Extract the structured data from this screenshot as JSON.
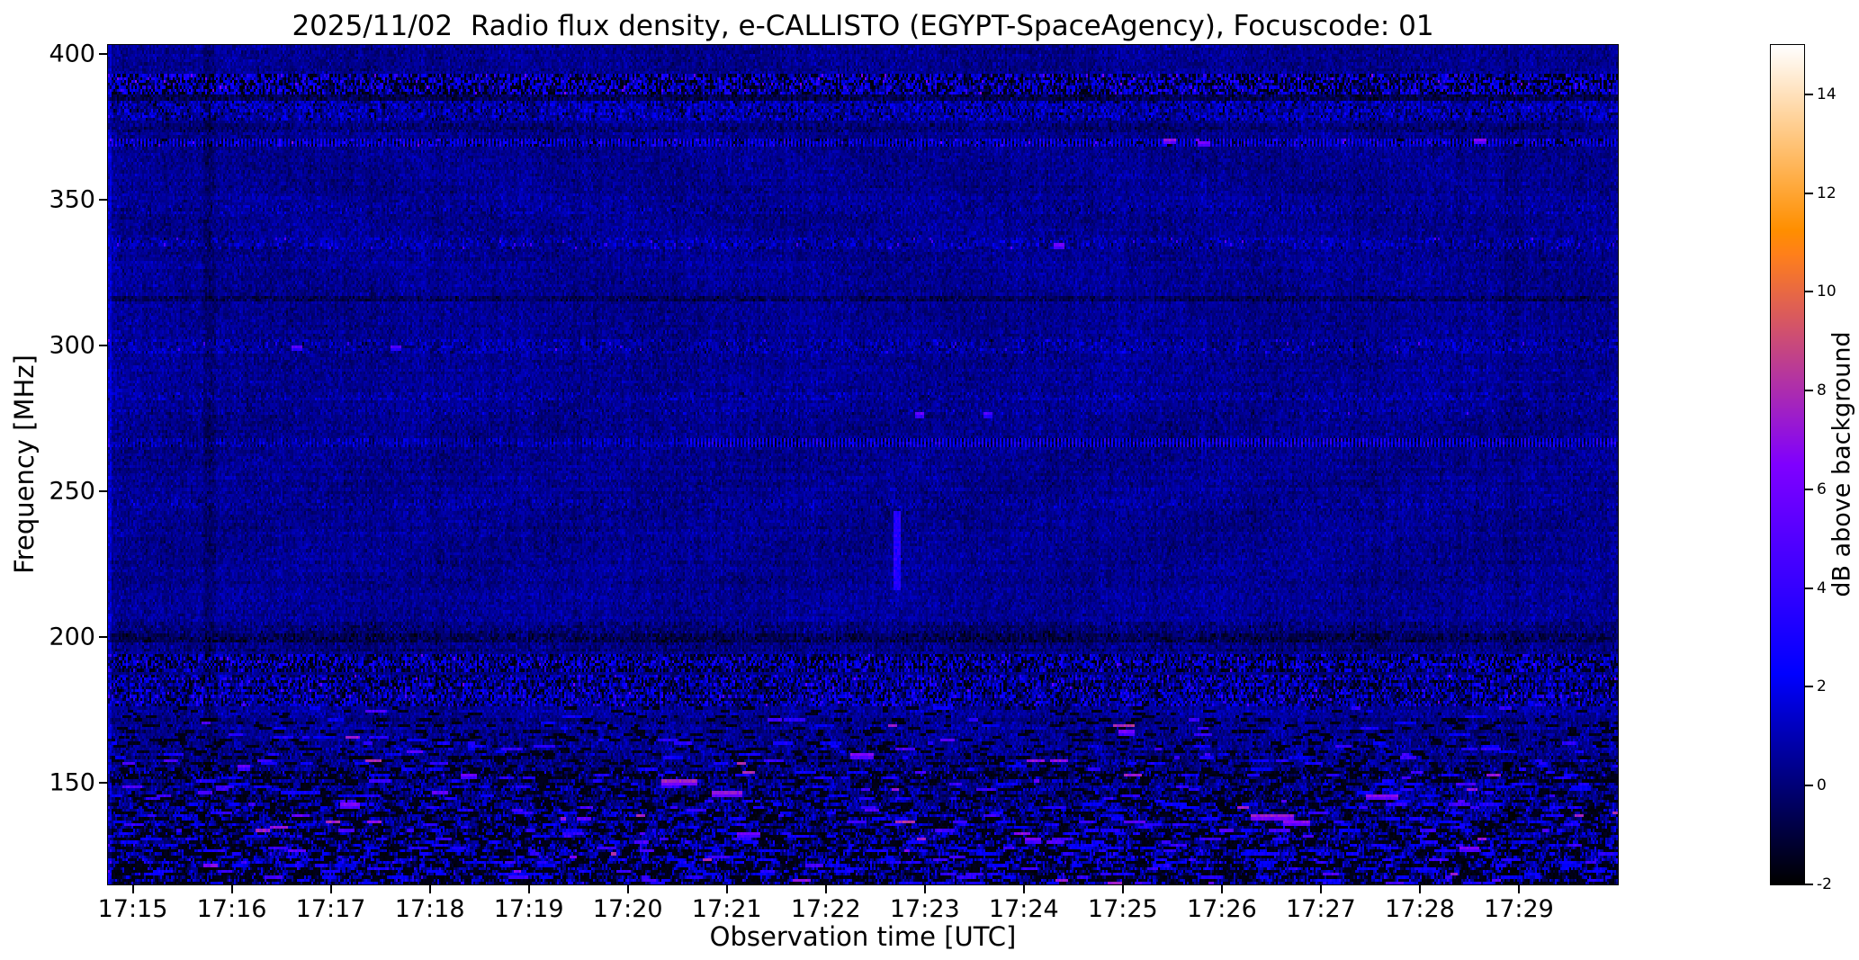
{
  "chart_data": {
    "type": "heatmap",
    "title": "2025/11/02  Radio flux density, e-CALLISTO (EGYPT-SpaceAgency), Focuscode: 01",
    "xlabel": "Observation time [UTC]",
    "ylabel": "Frequency [MHz]",
    "colorbar_label": "dB above background",
    "colormap": "gnuplot2",
    "t_min": -0.25,
    "t_max": 15.0,
    "f_min": 115,
    "f_max": 403,
    "v_min": -2,
    "v_max": 15,
    "background_db": 0.4,
    "noise_sigma_db": 0.45,
    "x_ticks": [
      {
        "label": "17:15",
        "t": 0
      },
      {
        "label": "17:16",
        "t": 1
      },
      {
        "label": "17:17",
        "t": 2
      },
      {
        "label": "17:18",
        "t": 3
      },
      {
        "label": "17:19",
        "t": 4
      },
      {
        "label": "17:20",
        "t": 5
      },
      {
        "label": "17:21",
        "t": 6
      },
      {
        "label": "17:22",
        "t": 7
      },
      {
        "label": "17:23",
        "t": 8
      },
      {
        "label": "17:24",
        "t": 9
      },
      {
        "label": "17:25",
        "t": 10
      },
      {
        "label": "17:26",
        "t": 11
      },
      {
        "label": "17:27",
        "t": 12
      },
      {
        "label": "17:28",
        "t": 13
      },
      {
        "label": "17:29",
        "t": 14
      }
    ],
    "y_ticks": [
      {
        "label": "400",
        "f": 400
      },
      {
        "label": "350",
        "f": 350
      },
      {
        "label": "300",
        "f": 300
      },
      {
        "label": "250",
        "f": 250
      },
      {
        "label": "200",
        "f": 200
      },
      {
        "label": "150",
        "f": 150
      }
    ],
    "colorbar_ticks": [
      {
        "label": "14",
        "v": 14
      },
      {
        "label": "12",
        "v": 12
      },
      {
        "label": "10",
        "v": 10
      },
      {
        "label": "8",
        "v": 8
      },
      {
        "label": "6",
        "v": 6
      },
      {
        "label": "4",
        "v": 4
      },
      {
        "label": "2",
        "v": 2
      },
      {
        "label": "0",
        "v": 0
      },
      {
        "label": "-2",
        "v": -2
      }
    ],
    "rfi_bands": [
      {
        "f_low": 386,
        "f_high": 393,
        "bias": 0.2,
        "sigma": 1.1,
        "black_prob": 0.3,
        "bright_prob": 0.2,
        "bright_min": 1.5,
        "bright_max": 4.0,
        "hot_prob": 0.012,
        "hot_min": 4.5,
        "hot_max": 7.0
      },
      {
        "f_low": 384.5,
        "f_high": 386,
        "bias": -1.0,
        "sigma": 0.4
      },
      {
        "f_low": 377,
        "f_high": 384,
        "bias": 0.3,
        "sigma": 0.8,
        "black_prob": 0.04,
        "bright_prob": 0.05,
        "bright_min": 1.5,
        "bright_max": 3.0
      },
      {
        "f_low": 373,
        "f_high": 376,
        "bias": -0.5,
        "sigma": 0.3
      },
      {
        "f_low": 368,
        "f_high": 371,
        "bias": 0.2,
        "sigma": 0.6,
        "dotted": true,
        "dot_amp": 1.6,
        "black_prob": 0.05,
        "bright_prob": 0.04,
        "bright_min": 2.5,
        "bright_max": 4.5,
        "hot_prob": 0.003,
        "hot_min": 5.5,
        "hot_max": 7.0
      },
      {
        "f_low": 345,
        "f_high": 348,
        "bias": 0.15,
        "sigma": 0.45
      },
      {
        "f_low": 333,
        "f_high": 337,
        "bias": 0.25,
        "sigma": 0.6,
        "bright_prob": 0.01,
        "bright_min": 3.0,
        "bright_max": 5.5
      },
      {
        "f_low": 315.4,
        "f_high": 317.2,
        "bias": -0.9,
        "sigma": 0.3
      },
      {
        "f_low": 297.5,
        "f_high": 301.5,
        "bias": 0.2,
        "sigma": 0.55,
        "bright_prob": 0.007,
        "bright_min": 3.0,
        "bright_max": 5.5
      },
      {
        "f_low": 281,
        "f_high": 284,
        "bias": 0.2,
        "sigma": 0.5
      },
      {
        "f_low": 276,
        "f_high": 278,
        "bias": 0.15,
        "sigma": 0.4,
        "bright_prob": 0.004,
        "bright_min": 3.0,
        "bright_max": 5.0
      },
      {
        "f_low": 265,
        "f_high": 267.5,
        "bias": 0.1,
        "sigma": 0.5,
        "dotted": true,
        "dot_amp": 2.0,
        "dot_ramp_t": 5.6
      },
      {
        "f_low": 244.5,
        "f_high": 247,
        "bias": 0.18,
        "sigma": 0.4
      },
      {
        "f_low": 195,
        "f_high": 205,
        "bias": -0.35,
        "sigma": 0.35
      },
      {
        "f_low": 198.5,
        "f_high": 201,
        "bias": -0.7,
        "sigma": 0.3
      },
      {
        "f_low": 188,
        "f_high": 194,
        "bias": 0.0,
        "sigma": 1.2,
        "black_prob": 0.22,
        "bright_prob": 0.1,
        "bright_min": 1.5,
        "bright_max": 3.5,
        "hot_prob": 0.003,
        "hot_min": 4.5,
        "hot_max": 6.0
      },
      {
        "f_low": 176,
        "f_high": 187,
        "bias": 0.15,
        "sigma": 1.2,
        "black_prob": 0.12,
        "bright_prob": 0.09,
        "bright_min": 1.5,
        "bright_max": 4.0,
        "hot_prob": 0.005,
        "hot_min": 4.5,
        "hot_max": 6.5
      },
      {
        "f_low": 151,
        "f_high": 154,
        "bias": -0.8,
        "sigma": 0.7,
        "black_prob": 0.15,
        "bright_prob": 0.05,
        "bright_min": 1.5,
        "bright_max": 3.0
      }
    ],
    "low_band": {
      "f_start": 176,
      "extra_sigma_base": 0.2,
      "extra_sigma_slope": 0.02,
      "black_prob_base": 0.02,
      "black_prob_slope": 0.0022,
      "black_prob_max": 0.12,
      "streak_prob_base": 0.005,
      "streak_prob_slope": 0.00035,
      "streak_val_min": 2.0,
      "streak_val_span": 4.0,
      "hot_frac": 0.05,
      "hot_min": 6.5,
      "hot_span": 1.6
    },
    "bright_events": [
      {
        "t": 5.35,
        "f": 150.5,
        "len_s": 22,
        "db": 7.6
      },
      {
        "t": 5.85,
        "f": 147.0,
        "len_s": 18,
        "db": 7.2
      },
      {
        "t": 7.25,
        "f": 160.0,
        "len_s": 14,
        "db": 6.6
      },
      {
        "t": 11.3,
        "f": 139.0,
        "len_s": 26,
        "db": 7.4
      },
      {
        "t": 11.62,
        "f": 137.0,
        "len_s": 16,
        "db": 6.8
      },
      {
        "t": 9.0,
        "f": 131.0,
        "len_s": 10,
        "db": 6.2
      },
      {
        "t": 9.95,
        "f": 168.0,
        "len_s": 10,
        "db": 6.0
      },
      {
        "t": 2.1,
        "f": 143.0,
        "len_s": 12,
        "db": 6.4
      },
      {
        "t": 3.3,
        "f": 152.5,
        "len_s": 10,
        "db": 5.8
      },
      {
        "t": 13.4,
        "f": 128.0,
        "len_s": 12,
        "db": 6.3
      },
      {
        "t": 6.1,
        "f": 133.0,
        "len_s": 14,
        "db": 6.0
      },
      {
        "t": 1.05,
        "f": 156.0,
        "len_s": 8,
        "db": 5.6
      },
      {
        "t": 12.45,
        "f": 146.0,
        "len_s": 20,
        "db": 6.9
      },
      {
        "t": 10.4,
        "f": 371.0,
        "len_s": 8,
        "db": 7.0
      },
      {
        "t": 10.75,
        "f": 370.0,
        "len_s": 8,
        "db": 6.4
      },
      {
        "t": 13.55,
        "f": 370.5,
        "len_s": 8,
        "db": 6.8
      },
      {
        "t": 9.3,
        "f": 334.5,
        "len_s": 6,
        "db": 5.8
      },
      {
        "t": 1.6,
        "f": 299.5,
        "len_s": 6,
        "db": 5.2
      },
      {
        "t": 2.6,
        "f": 299.5,
        "len_s": 6,
        "db": 5.0
      },
      {
        "t": 7.9,
        "f": 277.0,
        "len_s": 5,
        "db": 5.5
      },
      {
        "t": 8.6,
        "f": 277.0,
        "len_s": 5,
        "db": 5.0
      }
    ],
    "vertical_features": [
      {
        "t": 0.72,
        "dur_s": 7,
        "f_range": [
          115,
          403
        ],
        "dv": -0.55
      },
      {
        "t": 3.05,
        "dur_s": 6,
        "f_range": [
          115,
          403
        ],
        "dv": -0.25
      },
      {
        "t": 13.85,
        "dur_s": 9,
        "f_range": [
          115,
          403
        ],
        "dv": -0.35
      },
      {
        "t": 7.68,
        "dur_s": 5,
        "f_range": [
          216,
          243
        ],
        "set_db": 3.4
      }
    ],
    "colors": {
      "figure_background": "#ffffff",
      "text": "#000000"
    }
  }
}
